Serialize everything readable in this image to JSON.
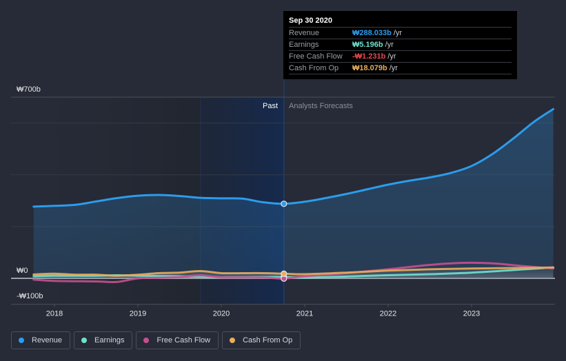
{
  "tooltip": {
    "date": "Sep 30 2020",
    "rows": [
      {
        "label": "Revenue",
        "value": "₩288.033b",
        "unit": "/yr",
        "color": "#2d9cec"
      },
      {
        "label": "Earnings",
        "value": "₩5.196b",
        "unit": "/yr",
        "color": "#6fe1cc"
      },
      {
        "label": "Free Cash Flow",
        "value": "-₩1.231b",
        "unit": "/yr",
        "color": "#e8474e"
      },
      {
        "label": "Cash From Op",
        "value": "₩18.079b",
        "unit": "/yr",
        "color": "#e9ad5c"
      }
    ]
  },
  "legend": [
    {
      "label": "Revenue",
      "color": "#2d9cec"
    },
    {
      "label": "Earnings",
      "color": "#6fe1cc"
    },
    {
      "label": "Free Cash Flow",
      "color": "#c84f8f"
    },
    {
      "label": "Cash From Op",
      "color": "#e9ad5c"
    }
  ],
  "chart_data": {
    "type": "line",
    "title": "",
    "xlabel": "",
    "ylabel": "",
    "currency_unit": "₩ billions",
    "x_ticks": [
      "2018",
      "2019",
      "2020",
      "2021",
      "2022",
      "2023"
    ],
    "y_ticks": [
      {
        "value": 700,
        "label": "₩700b"
      },
      {
        "value": 0,
        "label": "₩0"
      },
      {
        "value": -100,
        "label": "-₩100b"
      }
    ],
    "gridlines_at": [
      600,
      400,
      200
    ],
    "xlim": [
      2017.75,
      2023.98
    ],
    "ylim": [
      -100,
      700
    ],
    "past_forecast_divider": 2020.75,
    "past_shade_start": 2019.75,
    "region_labels": {
      "past": "Past",
      "forecast": "Analysts Forecasts"
    },
    "legend_position": "bottom-left",
    "highlight_x": 2020.75,
    "series": [
      {
        "name": "Revenue",
        "color": "#2d9cec",
        "points": [
          [
            2017.75,
            277
          ],
          [
            2018.0,
            280
          ],
          [
            2018.25,
            284
          ],
          [
            2018.5,
            297
          ],
          [
            2018.75,
            310
          ],
          [
            2019.0,
            319
          ],
          [
            2019.25,
            322
          ],
          [
            2019.5,
            318
          ],
          [
            2019.75,
            311
          ],
          [
            2020.0,
            309
          ],
          [
            2020.25,
            308
          ],
          [
            2020.5,
            294
          ],
          [
            2020.75,
            288
          ],
          [
            2021.0,
            296
          ],
          [
            2021.25,
            310
          ],
          [
            2021.5,
            326
          ],
          [
            2021.75,
            344
          ],
          [
            2022.0,
            362
          ],
          [
            2022.25,
            377
          ],
          [
            2022.5,
            390
          ],
          [
            2022.75,
            407
          ],
          [
            2023.0,
            434
          ],
          [
            2023.25,
            480
          ],
          [
            2023.5,
            540
          ],
          [
            2023.75,
            605
          ],
          [
            2023.98,
            654
          ]
        ]
      },
      {
        "name": "Earnings",
        "color": "#6fe1cc",
        "points": [
          [
            2017.75,
            8
          ],
          [
            2018.0,
            10
          ],
          [
            2018.5,
            10
          ],
          [
            2018.75,
            12
          ],
          [
            2019.0,
            10
          ],
          [
            2019.5,
            8
          ],
          [
            2019.75,
            6
          ],
          [
            2020.0,
            4
          ],
          [
            2020.5,
            5
          ],
          [
            2020.75,
            5
          ],
          [
            2021.0,
            3
          ],
          [
            2021.5,
            7
          ],
          [
            2022.0,
            12
          ],
          [
            2022.5,
            16
          ],
          [
            2023.0,
            22
          ],
          [
            2023.5,
            32
          ],
          [
            2023.98,
            42
          ]
        ]
      },
      {
        "name": "Free Cash Flow",
        "color": "#c84f8f",
        "points": [
          [
            2017.75,
            -5
          ],
          [
            2018.0,
            -10
          ],
          [
            2018.5,
            -12
          ],
          [
            2018.75,
            -14
          ],
          [
            2019.0,
            0
          ],
          [
            2019.25,
            2
          ],
          [
            2019.5,
            5
          ],
          [
            2019.75,
            12
          ],
          [
            2020.0,
            4
          ],
          [
            2020.5,
            3
          ],
          [
            2020.75,
            -1
          ],
          [
            2021.0,
            8
          ],
          [
            2021.5,
            20
          ],
          [
            2022.0,
            35
          ],
          [
            2022.5,
            52
          ],
          [
            2022.9,
            60
          ],
          [
            2023.25,
            58
          ],
          [
            2023.6,
            48
          ],
          [
            2023.98,
            38
          ]
        ]
      },
      {
        "name": "Cash From Op",
        "color": "#e9ad5c",
        "points": [
          [
            2017.75,
            15
          ],
          [
            2018.0,
            18
          ],
          [
            2018.25,
            14
          ],
          [
            2018.5,
            14
          ],
          [
            2018.75,
            10
          ],
          [
            2019.0,
            14
          ],
          [
            2019.25,
            20
          ],
          [
            2019.5,
            22
          ],
          [
            2019.75,
            28
          ],
          [
            2020.0,
            20
          ],
          [
            2020.25,
            20
          ],
          [
            2020.5,
            20
          ],
          [
            2020.75,
            18
          ],
          [
            2021.0,
            16
          ],
          [
            2021.5,
            22
          ],
          [
            2022.0,
            30
          ],
          [
            2022.5,
            35
          ],
          [
            2023.0,
            38
          ],
          [
            2023.5,
            40
          ],
          [
            2023.98,
            42
          ]
        ]
      }
    ]
  }
}
